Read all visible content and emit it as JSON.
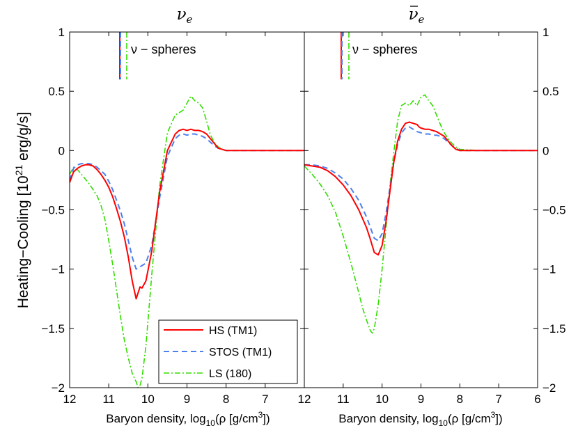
{
  "chart_data": [
    {
      "type": "line",
      "title": "νe",
      "xlabel": "Baryon density, log10(ρ [g/cm3])",
      "ylabel": "Heating−Cooling [1021 erg/g/s]",
      "xlim": [
        12,
        6
      ],
      "ylim": [
        -2,
        1
      ],
      "x_ticks": [
        12,
        11,
        10,
        9,
        8,
        7
      ],
      "y_ticks": [
        -2,
        -1.5,
        -1,
        -0.5,
        0,
        0.5,
        1
      ],
      "y_tick_labels": [
        "−2",
        "−1.5",
        "−1",
        "−0.5",
        "0",
        "0.5",
        "1"
      ],
      "annotation": "ν − spheres",
      "legend_position": "lower-right",
      "series": [
        {
          "name": "HS (TM1)",
          "color": "#ff0000",
          "dash": "solid",
          "x": [
            12,
            11.9,
            11.8,
            11.7,
            11.6,
            11.5,
            11.4,
            11.3,
            11.2,
            11.1,
            11.0,
            10.9,
            10.8,
            10.7,
            10.6,
            10.5,
            10.4,
            10.3,
            10.2,
            10.15,
            10.05,
            9.9,
            9.7,
            9.5,
            9.3,
            9.2,
            9.1,
            9.0,
            8.9,
            8.8,
            8.7,
            8.6,
            8.5,
            8.4,
            8.3,
            8.2,
            8.1,
            8.0,
            7.5,
            7.0,
            6.5,
            6.0
          ],
          "y": [
            -0.27,
            -0.18,
            -0.15,
            -0.13,
            -0.12,
            -0.12,
            -0.13,
            -0.16,
            -0.2,
            -0.25,
            -0.31,
            -0.39,
            -0.49,
            -0.6,
            -0.73,
            -0.9,
            -1.1,
            -1.25,
            -1.15,
            -1.16,
            -1.1,
            -0.85,
            -0.35,
            0.0,
            0.14,
            0.17,
            0.18,
            0.17,
            0.18,
            0.17,
            0.17,
            0.16,
            0.14,
            0.1,
            0.06,
            0.02,
            0.01,
            0.0,
            0.0,
            0.0,
            0.0,
            0.0
          ]
        },
        {
          "name": "STOS (TM1)",
          "color": "#4d7fee",
          "dash": "dashed",
          "x": [
            12,
            11.9,
            11.8,
            11.7,
            11.6,
            11.5,
            11.4,
            11.3,
            11.2,
            11.1,
            11.0,
            10.9,
            10.8,
            10.7,
            10.6,
            10.5,
            10.4,
            10.3,
            10.2,
            10.15,
            10.05,
            9.9,
            9.7,
            9.5,
            9.3,
            9.2,
            9.1,
            9.0,
            8.9,
            8.8,
            8.7,
            8.6,
            8.5,
            8.4,
            8.3,
            8.2,
            8.1,
            8.0,
            7.5,
            7.0,
            6.5,
            6.0
          ],
          "y": [
            -0.25,
            -0.15,
            -0.12,
            -0.11,
            -0.11,
            -0.11,
            -0.12,
            -0.14,
            -0.17,
            -0.2,
            -0.26,
            -0.33,
            -0.42,
            -0.51,
            -0.62,
            -0.76,
            -0.9,
            -1.0,
            -0.98,
            -0.97,
            -0.95,
            -0.8,
            -0.4,
            -0.05,
            0.1,
            0.13,
            0.14,
            0.13,
            0.14,
            0.14,
            0.13,
            0.12,
            0.1,
            0.07,
            0.04,
            0.02,
            0.01,
            0.0,
            0.0,
            0.0,
            0.0,
            0.0
          ]
        },
        {
          "name": "LS (180)",
          "color": "#33dd00",
          "dash": "dashdot",
          "x": [
            12,
            11.9,
            11.8,
            11.7,
            11.6,
            11.5,
            11.4,
            11.3,
            11.2,
            11.1,
            11.0,
            10.9,
            10.8,
            10.7,
            10.6,
            10.5,
            10.4,
            10.3,
            10.25,
            10.2,
            10.15,
            10.05,
            9.9,
            9.7,
            9.5,
            9.3,
            9.2,
            9.1,
            9.0,
            8.9,
            8.8,
            8.7,
            8.6,
            8.5,
            8.4,
            8.3,
            8.2,
            8.1,
            8.0,
            7.5,
            7.0,
            6.5,
            6.0
          ],
          "y": [
            -0.2,
            -0.14,
            -0.16,
            -0.2,
            -0.24,
            -0.28,
            -0.33,
            -0.38,
            -0.46,
            -0.58,
            -0.76,
            -0.96,
            -1.18,
            -1.4,
            -1.6,
            -1.75,
            -1.88,
            -1.95,
            -2.0,
            -1.98,
            -1.92,
            -1.65,
            -1.05,
            -0.3,
            0.15,
            0.3,
            0.32,
            0.34,
            0.4,
            0.46,
            0.42,
            0.4,
            0.36,
            0.25,
            0.13,
            0.07,
            0.03,
            0.01,
            0.0,
            0.0,
            0.0,
            0.0,
            0.0
          ]
        }
      ]
    },
    {
      "type": "line",
      "title": "ν̄e",
      "xlabel": "Baryon density, log10(ρ [g/cm3])",
      "xlim": [
        12,
        6
      ],
      "ylim": [
        -2,
        1
      ],
      "x_ticks": [
        12,
        11,
        10,
        9,
        8,
        7,
        6
      ],
      "y_ticks": [
        -2,
        -1.5,
        -1,
        -0.5,
        0,
        0.5,
        1
      ],
      "y_tick_labels": [
        "−2",
        "−1.5",
        "−1",
        "−0.5",
        "0",
        "0.5",
        "1"
      ],
      "annotation": "ν − spheres",
      "series": [
        {
          "name": "HS (TM1)",
          "color": "#ff0000",
          "dash": "solid",
          "x": [
            12,
            11.8,
            11.6,
            11.4,
            11.2,
            11.0,
            10.8,
            10.6,
            10.4,
            10.3,
            10.2,
            10.1,
            10.0,
            9.9,
            9.8,
            9.7,
            9.6,
            9.5,
            9.4,
            9.3,
            9.2,
            9.1,
            9.05,
            9.0,
            8.9,
            8.8,
            8.7,
            8.6,
            8.5,
            8.4,
            8.3,
            8.2,
            8.1,
            8.0,
            7.5,
            7.0,
            6.5,
            6.0
          ],
          "y": [
            -0.12,
            -0.13,
            -0.14,
            -0.17,
            -0.22,
            -0.29,
            -0.38,
            -0.5,
            -0.65,
            -0.75,
            -0.86,
            -0.88,
            -0.8,
            -0.6,
            -0.35,
            -0.1,
            0.08,
            0.18,
            0.23,
            0.24,
            0.23,
            0.22,
            0.2,
            0.19,
            0.18,
            0.18,
            0.17,
            0.16,
            0.14,
            0.12,
            0.08,
            0.04,
            0.01,
            0.0,
            0.0,
            0.0,
            0.0,
            0.0
          ]
        },
        {
          "name": "STOS (TM1)",
          "color": "#4d7fee",
          "dash": "dashed",
          "x": [
            12,
            11.8,
            11.6,
            11.4,
            11.2,
            11.0,
            10.8,
            10.6,
            10.4,
            10.3,
            10.2,
            10.1,
            10.0,
            9.9,
            9.8,
            9.7,
            9.6,
            9.5,
            9.4,
            9.3,
            9.2,
            9.1,
            9.0,
            8.9,
            8.8,
            8.7,
            8.6,
            8.5,
            8.4,
            8.3,
            8.2,
            8.1,
            8.0,
            7.5,
            7.0,
            6.5,
            6.0
          ],
          "y": [
            -0.12,
            -0.12,
            -0.13,
            -0.15,
            -0.19,
            -0.24,
            -0.32,
            -0.42,
            -0.56,
            -0.65,
            -0.74,
            -0.76,
            -0.7,
            -0.53,
            -0.32,
            -0.1,
            0.05,
            0.15,
            0.19,
            0.2,
            0.18,
            0.16,
            0.15,
            0.14,
            0.14,
            0.13,
            0.13,
            0.12,
            0.1,
            0.07,
            0.04,
            0.02,
            0.0,
            0.0,
            0.0,
            0.0,
            0.0
          ]
        },
        {
          "name": "LS (180)",
          "color": "#33dd00",
          "dash": "dashdot",
          "x": [
            12,
            11.8,
            11.6,
            11.4,
            11.2,
            11.0,
            10.8,
            10.6,
            10.5,
            10.4,
            10.3,
            10.25,
            10.2,
            10.1,
            10.0,
            9.9,
            9.8,
            9.7,
            9.6,
            9.5,
            9.4,
            9.3,
            9.2,
            9.1,
            9.0,
            8.9,
            8.8,
            8.7,
            8.6,
            8.5,
            8.4,
            8.3,
            8.2,
            8.1,
            8.0,
            7.5,
            7.0,
            6.5,
            6.0
          ],
          "y": [
            -0.13,
            -0.2,
            -0.28,
            -0.38,
            -0.52,
            -0.72,
            -0.95,
            -1.2,
            -1.33,
            -1.43,
            -1.52,
            -1.54,
            -1.5,
            -1.3,
            -1.0,
            -0.65,
            -0.3,
            -0.02,
            0.25,
            0.38,
            0.4,
            0.38,
            0.42,
            0.38,
            0.45,
            0.47,
            0.42,
            0.38,
            0.3,
            0.22,
            0.15,
            0.1,
            0.06,
            0.03,
            0.01,
            0.0,
            0.0,
            0.0,
            0.0
          ]
        }
      ]
    }
  ]
}
